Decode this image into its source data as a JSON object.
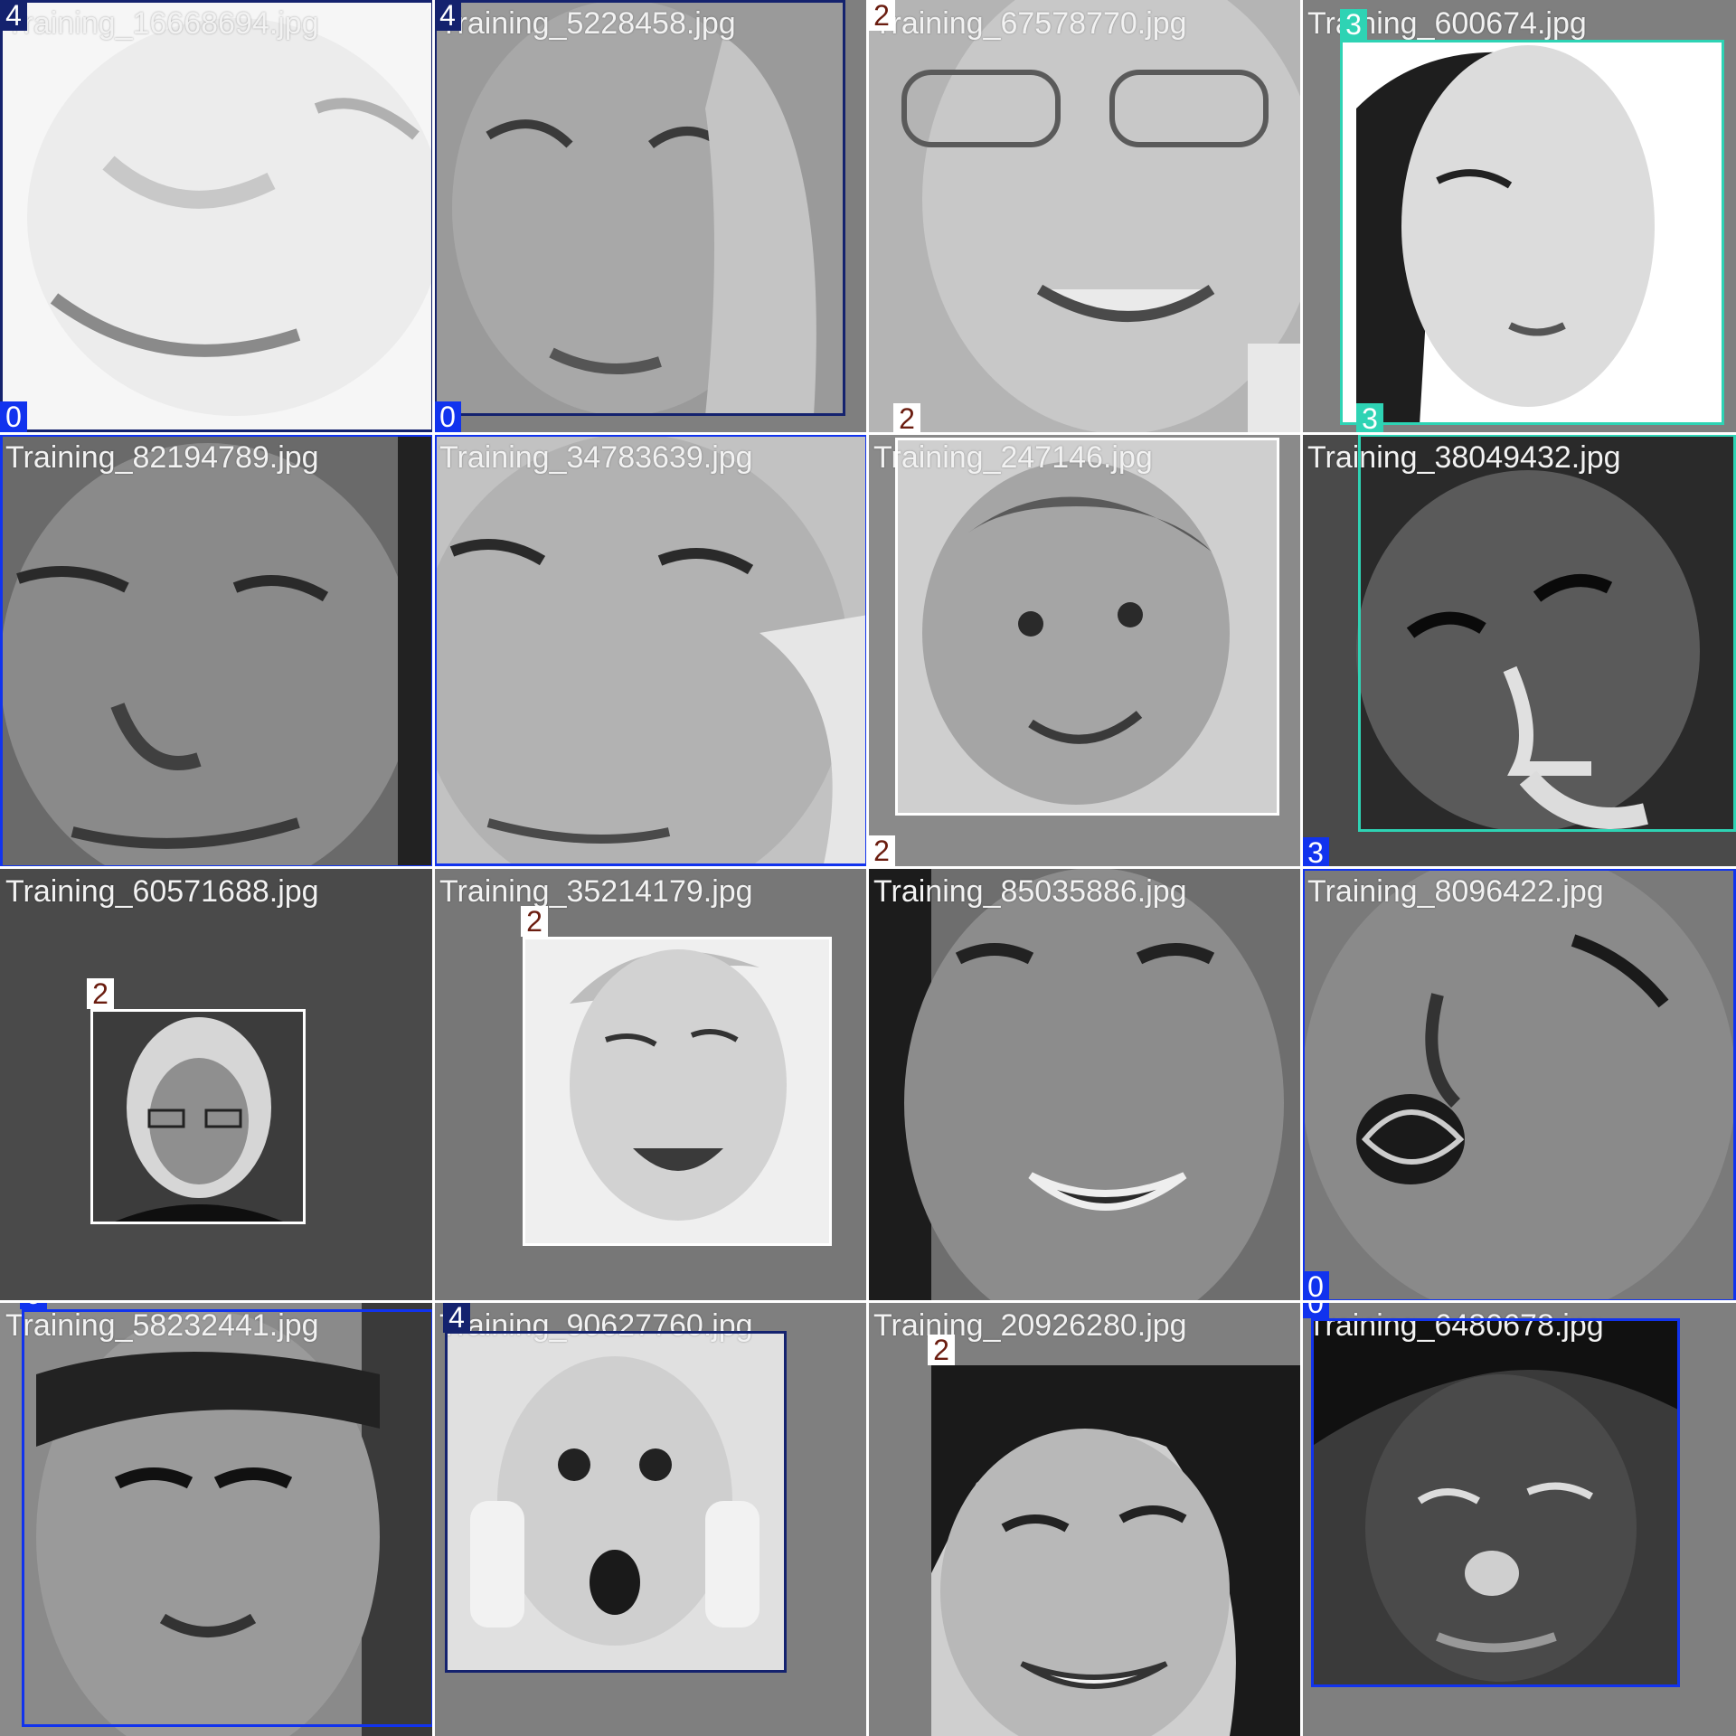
{
  "colors": {
    "class_0": "#1133ee",
    "class_2": "#6b1d10",
    "class_2_badge_bg": "#ffffff",
    "class_3": "#2ed3b4",
    "class_4": "#14226e",
    "filename_text": "#f2f2f2",
    "background_gray": "#7f7f7f"
  },
  "tiles": [
    {
      "file": "Training_16668694.jpg",
      "labels": [
        "4",
        "0"
      ]
    },
    {
      "file": "Training_5228458.jpg",
      "labels": [
        "4",
        "0"
      ]
    },
    {
      "file": "Training_67578770.jpg",
      "labels": [
        "2",
        "2"
      ]
    },
    {
      "file": "Training_600674.jpg",
      "labels": [
        "3",
        "3"
      ]
    },
    {
      "file": "Training_82194789.jpg",
      "labels": [
        "0"
      ]
    },
    {
      "file": "Training_34783639.jpg",
      "labels": [
        "0"
      ]
    },
    {
      "file": "Training_247146.jpg",
      "labels": [
        "2"
      ]
    },
    {
      "file": "Training_38049432.jpg",
      "labels": [
        "3"
      ]
    },
    {
      "file": "Training_60571688.jpg",
      "labels": [
        "2"
      ]
    },
    {
      "file": "Training_35214179.jpg",
      "labels": [
        "2"
      ]
    },
    {
      "file": "Training_85035886.jpg",
      "labels": []
    },
    {
      "file": "Training_8096422.jpg",
      "labels": [
        "0"
      ]
    },
    {
      "file": "Training_58232441.jpg",
      "labels": [
        "0"
      ]
    },
    {
      "file": "Training_90627760.jpg",
      "labels": [
        "4"
      ]
    },
    {
      "file": "Training_20926280.jpg",
      "labels": [
        "2"
      ]
    },
    {
      "file": "Training_6480678.jpg",
      "labels": [
        "0"
      ]
    }
  ]
}
